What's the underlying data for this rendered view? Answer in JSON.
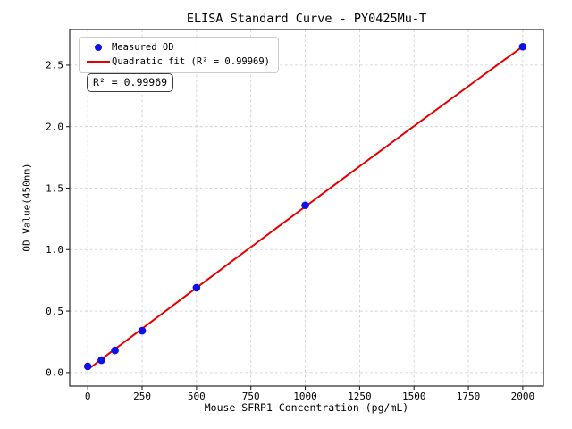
{
  "annotation": {
    "text": "R² = 0.99969"
  },
  "legend": {
    "items": [
      {
        "label": "Measured OD",
        "marker": "dot",
        "color": "#0f0fe8"
      },
      {
        "label": "Quadratic fit (R² = 0.99969)",
        "marker": "line",
        "color": "#e80000"
      }
    ]
  },
  "chart_data": {
    "type": "scatter",
    "title": "ELISA Standard Curve - PY0425Mu-T",
    "xlabel": "Mouse SFRP1 Concentration (pg/mL)",
    "ylabel": "OD Value(450nm)",
    "series": [
      {
        "name": "Measured OD",
        "type": "scatter",
        "color": "#0f0fe8",
        "x": [
          0,
          62.5,
          125,
          250,
          500,
          1000,
          2000
        ],
        "y": [
          0.05,
          0.1,
          0.18,
          0.34,
          0.69,
          1.36,
          2.65
        ]
      },
      {
        "name": "Quadratic fit (R² = 0.99969)",
        "type": "quadratic-fit",
        "color": "#e80000",
        "r_squared": 0.99969,
        "x_range": [
          0,
          2000
        ]
      }
    ],
    "xlim": [
      -83,
      2095
    ],
    "ylim": [
      -0.11,
      2.79
    ],
    "xticks": {
      "values": [
        0,
        250,
        500,
        750,
        1000,
        1250,
        1500,
        1750,
        2000
      ],
      "labels": [
        "0",
        "250",
        "500",
        "750",
        "1000",
        "1250",
        "1500",
        "1750",
        "2000"
      ]
    },
    "yticks": {
      "values": [
        0,
        0.5,
        1.0,
        1.5,
        2.0,
        2.5
      ],
      "labels": [
        "0.0",
        "0.5",
        "1.0",
        "1.5",
        "2.0",
        "2.5"
      ]
    },
    "grid": true,
    "grid_color": "#cccccc",
    "frame_color": "#262626",
    "tick_label_color": "#000000",
    "legend_position": "upper left"
  }
}
